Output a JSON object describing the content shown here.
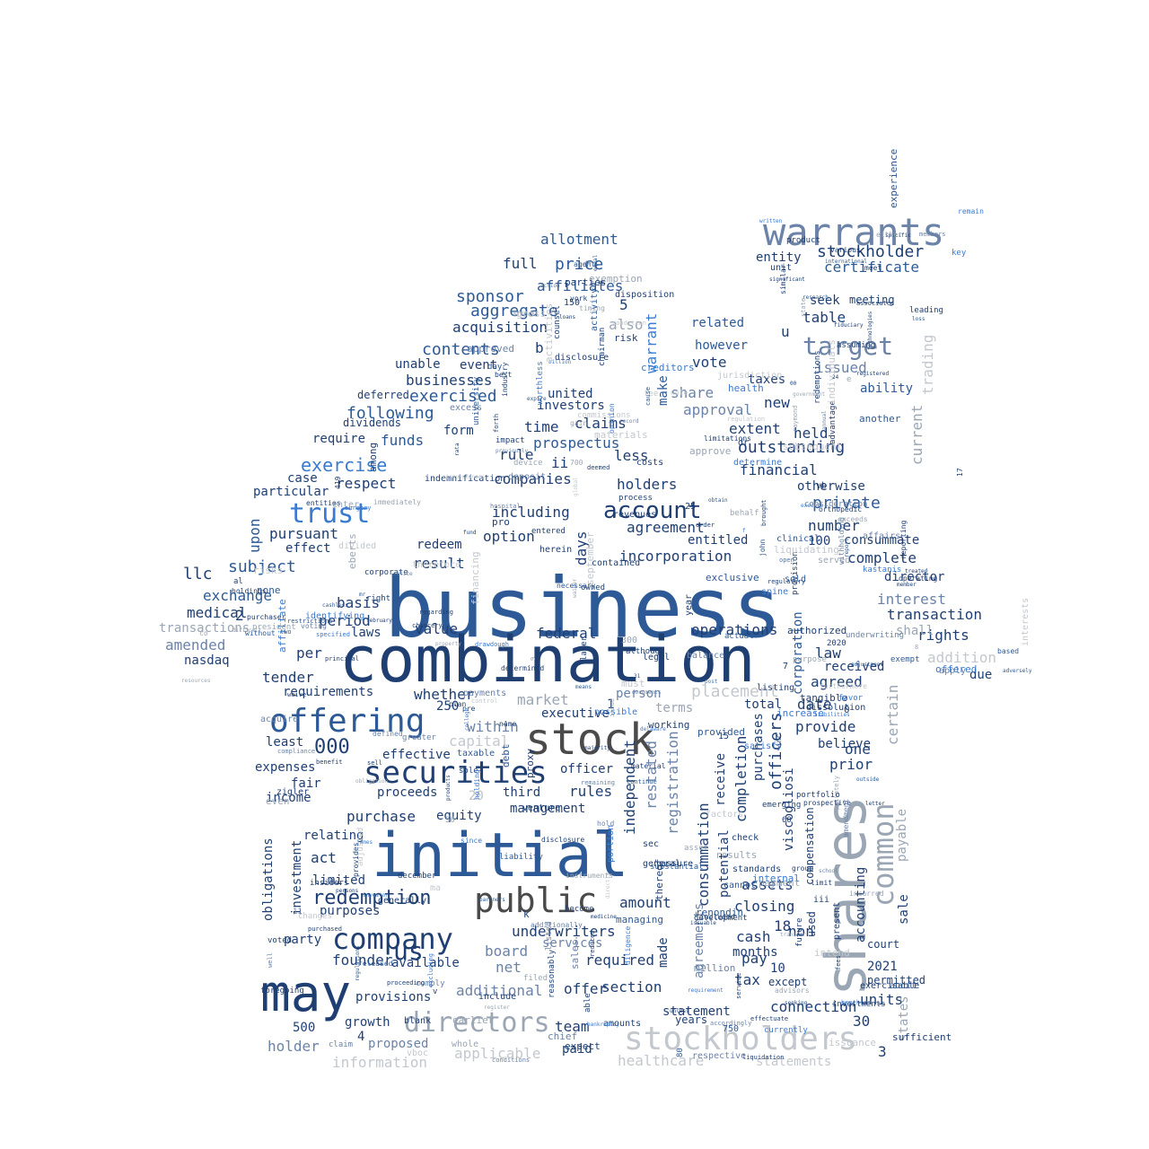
{
  "palette": {
    "navy": "#1f3f73",
    "blue": "#2d5a96",
    "bright": "#3a7ad0",
    "slate": "#6b83a8",
    "grey": "#9aa6b4",
    "lightgrey": "#c3c8ce",
    "dark": "#4a4a4a"
  },
  "words": [
    "business",
    "combination",
    "initial",
    "may",
    "stock",
    "shares",
    "warrants",
    "offering",
    "securities",
    "public",
    "company",
    "trust",
    "stockholders",
    "common",
    "directors",
    "account",
    "target",
    "redemption",
    "placement",
    "000",
    "us",
    "exercise",
    "warrant",
    "stockholder",
    "certificate",
    "entity",
    "unit",
    "full",
    "price",
    "allotment",
    "sponsor",
    "affiliates",
    "aggregate",
    "acquisition",
    "contents",
    "businesses",
    "exercised",
    "following",
    "funds",
    "subject",
    "pursuant",
    "upon",
    "llc",
    "exchange",
    "medical",
    "amended",
    "transactions",
    "nasdaq",
    "tender",
    "requirements",
    "per",
    "value",
    "period",
    "basis",
    "laws",
    "federal",
    "market",
    "executive",
    "capital",
    "within",
    "whether",
    "operations",
    "incorporation",
    "agreement",
    "including",
    "companies",
    "option",
    "redeem",
    "result",
    "holders",
    "days",
    "rule",
    "prospectus",
    "time",
    "claims",
    "united",
    "investors",
    "also",
    "table",
    "seek",
    "meeting",
    "issued",
    "ability",
    "approval",
    "vote",
    "however",
    "related",
    "make",
    "share",
    "taxes",
    "new",
    "extent",
    "held",
    "outstanding",
    "financial",
    "private",
    "otherwise",
    "number",
    "consummate",
    "complete",
    "director",
    "interest",
    "transaction",
    "rights",
    "addition",
    "law",
    "agreed",
    "received",
    "date",
    "provide",
    "total",
    "believe",
    "prior",
    "one",
    "certain",
    "trading",
    "current",
    "corporation",
    "officers",
    "viscogliosi",
    "purchases",
    "completion",
    "registration",
    "restated",
    "independent",
    "consummation",
    "agreements",
    "potential",
    "receive",
    "tax",
    "pay",
    "cash",
    "closing",
    "assets",
    "non",
    "months",
    "10",
    "18",
    "2021",
    "30",
    "units",
    "connection",
    "except",
    "accounting",
    "statements",
    "healthcare",
    "applicable",
    "information",
    "proposed",
    "holder",
    "500",
    "growth",
    "team",
    "paid",
    "section",
    "statement",
    "offer",
    "required",
    "made",
    "amount",
    "underwriters",
    "board",
    "net",
    "additional",
    "available",
    "provisions",
    "founder",
    "party",
    "purposes",
    "limited",
    "investment",
    "obligations",
    "act",
    "relating",
    "purchase",
    "equity",
    "income",
    "fair",
    "expenses",
    "least",
    "effective",
    "officer",
    "rules",
    "third",
    "proceeds",
    "management",
    "20",
    "services",
    "described",
    "sale",
    "payable",
    "states",
    "less",
    "ii",
    "b",
    "u",
    "20",
    "interests",
    "entitled",
    "terms",
    "person",
    "case",
    "respect",
    "require",
    "event",
    "unable",
    "form",
    "particular",
    "effect",
    "dividends",
    "deferred",
    "legal",
    "sec",
    "general",
    "check",
    "standards",
    "group",
    "compensation",
    "used",
    "shall",
    "due",
    "apply",
    "court",
    "exercisable",
    "permitted",
    "years",
    "amounts",
    "3",
    "4",
    "2",
    "5",
    "250",
    "100",
    "1",
    "15",
    "7"
  ],
  "small_words": [
    "means",
    "exemption",
    "december",
    "obligation",
    "none",
    "continue",
    "worthless",
    "orthopedic",
    "released",
    "liability",
    "action",
    "accordingly",
    "additionally",
    "james",
    "sufficient",
    "post",
    "divided",
    "pre",
    "listed",
    "fees",
    "emerging",
    "technologies",
    "managing",
    "agent",
    "fiduciary",
    "purchaser",
    "disclosure",
    "limitations",
    "entered",
    "gross",
    "chief",
    "payment",
    "included",
    "material",
    "september",
    "financing",
    "principal",
    "day",
    "comply",
    "entities",
    "gain",
    "provision",
    "industry",
    "transfer",
    "excess",
    "million",
    "report",
    "increase",
    "privately",
    "currently",
    "documents",
    "purpose",
    "include",
    "member",
    "whole",
    "restrictions",
    "fee",
    "waiver",
    "proxy",
    "tangible",
    "order",
    "zigler",
    "later",
    "deposit",
    "since",
    "defined",
    "without",
    "similar",
    "previously",
    "owned",
    "venture",
    "brothers",
    "reporting",
    "favor",
    "holdings",
    "inc",
    "future",
    "delaware",
    "difficult",
    "effectuate",
    "written",
    "dissolution",
    "determine",
    "among",
    "indemnification",
    "enter",
    "costs",
    "portfolio",
    "necessary",
    "global",
    "property",
    "majority",
    "february",
    "jurisdiction",
    "sole",
    "liquidating",
    "advantage",
    "persons",
    "incurred",
    "outside",
    "filed",
    "rata",
    "impact",
    "debt",
    "meet",
    "exclusive",
    "contained",
    "subsequent",
    "service",
    "plan",
    "factors",
    "voted",
    "creditors",
    "disposition",
    "kastanis",
    "voting",
    "seeking",
    "blank",
    "greater",
    "commissions",
    "university",
    "identifying",
    "expect",
    "advisors",
    "surgery",
    "record",
    "chairman",
    "development",
    "authorized",
    "affairs",
    "eberts",
    "execute",
    "become",
    "redemptions",
    "reasonably",
    "substantial",
    "regulations",
    "products",
    "health",
    "offered",
    "specific",
    "research",
    "prospective",
    "generally",
    "government",
    "diligence",
    "thereof",
    "counsel",
    "another",
    "dr",
    "sales",
    "audit",
    "materials",
    "adjusted",
    "school",
    "proceeding",
    "determined",
    "well",
    "changes",
    "purchased",
    "affiliate",
    "exempt",
    "assure",
    "sell",
    "listing",
    "equal",
    "loss",
    "actual",
    "investments",
    "control",
    "york",
    "year",
    "served",
    "right",
    "taxable",
    "product",
    "asset",
    "must",
    "benefit",
    "associated",
    "treated",
    "liabilities",
    "excluding",
    "operating",
    "based",
    "device",
    "significant",
    "waive",
    "registered",
    "experience",
    "international",
    "two",
    "spine",
    "chancery",
    "regulatory",
    "satisfy",
    "holding",
    "present",
    "remain",
    "reduced",
    "drawdough",
    "open",
    "president",
    "investor",
    "herein",
    "approved",
    "college",
    "behalf",
    "risks",
    "claim",
    "affect",
    "immediately",
    "possible",
    "timing",
    "opinion",
    "leading",
    "internal",
    "issue",
    "obtain",
    "adversely",
    "directly",
    "provided",
    "even",
    "withholding",
    "adjustment",
    "compliance",
    "regarding",
    "provides",
    "exceeds",
    "medicine",
    "best",
    "working",
    "although",
    "portion",
    "cannot",
    "various",
    "consideration",
    "furthermore",
    "parties",
    "assuming",
    "remaining",
    "requirement",
    "instruments",
    "limit",
    "either",
    "conditions",
    "members",
    "intend",
    "unless",
    "sold",
    "annual",
    "expire",
    "register",
    "results",
    "foregoing",
    "circumstances",
    "respective",
    "issuable",
    "brought",
    "individuals",
    "billion",
    "renondin",
    "key",
    "clinical",
    "corporate",
    "earlier",
    "cashless",
    "loans",
    "regulation",
    "resources",
    "hospital",
    "hold",
    "letter",
    "cause",
    "activities",
    "specified",
    "bankruptcy",
    "underwriting",
    "acquire",
    "iii",
    "vb",
    "risk",
    "amendment",
    "deemed",
    "mr",
    "able",
    "state",
    "liquidation",
    "notice",
    "disclosure",
    "fund",
    "forth",
    "name",
    "john",
    "note",
    "vboc",
    "revenues",
    "raymond",
    "insiders",
    "therefore",
    "activity",
    "approve",
    "partners",
    "condition",
    "issuance",
    "process",
    "balance",
    "payments",
    "pro",
    "al",
    "f",
    "k",
    "0",
    "8",
    "9",
    "11",
    "17",
    "24",
    "25",
    "31",
    "40",
    "50",
    "60",
    "80",
    "150",
    "300",
    "419",
    "700",
    "750",
    "2020",
    "00",
    "co",
    "ma",
    "v",
    "e"
  ]
}
